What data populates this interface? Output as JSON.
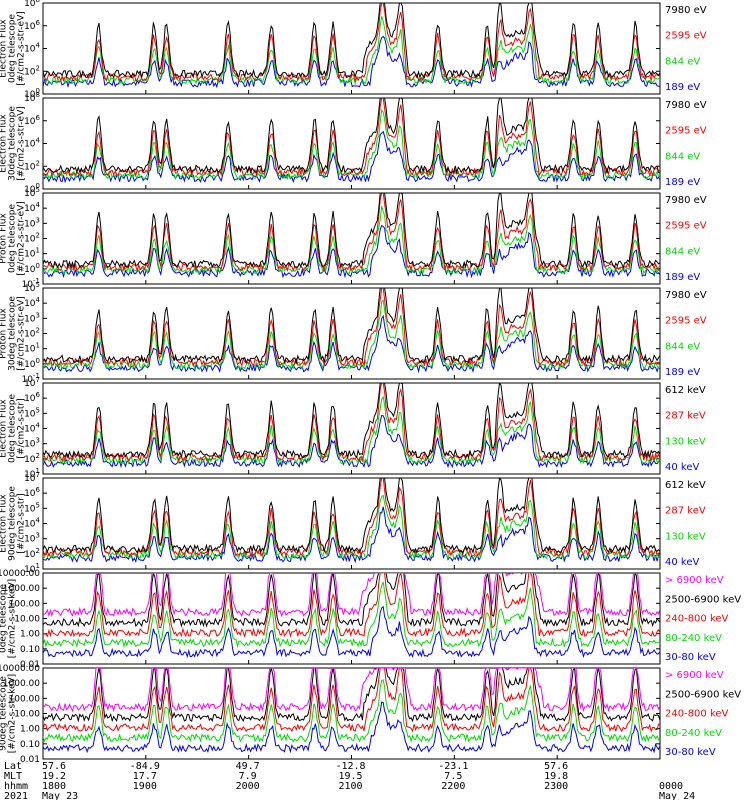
{
  "chart_data": [
    {
      "type": "line",
      "ylabel": [
        "TED",
        "Electron Flux",
        "0deg telescope",
        "[#/cm2-s-str-eV]"
      ],
      "yscale": "log",
      "ylim": [
        1,
        100000000
      ],
      "yticks": [
        "10^0",
        "10^2",
        "10^4",
        "10^6",
        "10^8"
      ],
      "series": [
        {
          "name": "7980 eV",
          "color": "#000000"
        },
        {
          "name": "2595 eV",
          "color": "#ff0000"
        },
        {
          "name": "844 eV",
          "color": "#00dd00"
        },
        {
          "name": "189 eV",
          "color": "#0000ff"
        }
      ]
    },
    {
      "type": "line",
      "ylabel": [
        "TED",
        "Electron Flux",
        "30deg telescope",
        "[#/cm2-s-str-eV]"
      ],
      "yscale": "log",
      "ylim": [
        1,
        100000000
      ],
      "yticks": [
        "10^0",
        "10^2",
        "10^4",
        "10^6",
        "10^8"
      ],
      "series": [
        {
          "name": "7980 eV",
          "color": "#000000"
        },
        {
          "name": "2595 eV",
          "color": "#ff0000"
        },
        {
          "name": "844 eV",
          "color": "#00dd00"
        },
        {
          "name": "189 eV",
          "color": "#0000ff"
        }
      ]
    },
    {
      "type": "line",
      "ylabel": [
        "TED",
        "Proton Flux",
        "0deg telescope",
        "[#/cm2-s-str-eV]"
      ],
      "yscale": "log",
      "ylim": [
        0.1,
        100000
      ],
      "yticks": [
        "10^-1",
        "10^0",
        "10^1",
        "10^2",
        "10^3",
        "10^4",
        "10^5"
      ],
      "series": [
        {
          "name": "7980 eV",
          "color": "#000000"
        },
        {
          "name": "2595 eV",
          "color": "#ff0000"
        },
        {
          "name": "844 eV",
          "color": "#00dd00"
        },
        {
          "name": "189 eV",
          "color": "#0000ff"
        }
      ]
    },
    {
      "type": "line",
      "ylabel": [
        "TED",
        "Proton Flux",
        "30deg telescope",
        "[#/cm2-s-str-eV]"
      ],
      "yscale": "log",
      "ylim": [
        0.1,
        100000
      ],
      "yticks": [
        "10^-1",
        "10^0",
        "10^1",
        "10^2",
        "10^3",
        "10^4",
        "10^5"
      ],
      "series": [
        {
          "name": "7980 eV",
          "color": "#000000"
        },
        {
          "name": "2595 eV",
          "color": "#ff0000"
        },
        {
          "name": "844 eV",
          "color": "#00dd00"
        },
        {
          "name": "189 eV",
          "color": "#0000ff"
        }
      ]
    },
    {
      "type": "line",
      "ylabel": [
        "MEPED",
        "Electron Flux",
        "0deg telescope",
        "[#/cm2-s-str]"
      ],
      "yscale": "log",
      "ylim": [
        10,
        10000000
      ],
      "yticks": [
        "10^1",
        "10^2",
        "10^3",
        "10^4",
        "10^5",
        "10^6",
        "10^7"
      ],
      "series": [
        {
          "name": "612 keV",
          "color": "#000000"
        },
        {
          "name": "287 keV",
          "color": "#ff0000"
        },
        {
          "name": "130 keV",
          "color": "#00dd00"
        },
        {
          "name": "40 keV",
          "color": "#0000ff"
        }
      ]
    },
    {
      "type": "line",
      "ylabel": [
        "MEPED",
        "Electron Flux",
        "90deg telescope",
        "[#/cm2-s-str]"
      ],
      "yscale": "log",
      "ylim": [
        10,
        10000000
      ],
      "yticks": [
        "10^1",
        "10^2",
        "10^3",
        "10^4",
        "10^5",
        "10^6",
        "10^7"
      ],
      "series": [
        {
          "name": "612 keV",
          "color": "#000000"
        },
        {
          "name": "287 keV",
          "color": "#ff0000"
        },
        {
          "name": "130 keV",
          "color": "#00dd00"
        },
        {
          "name": "40 keV",
          "color": "#0000ff"
        }
      ]
    },
    {
      "type": "scatter",
      "ylabel": [
        "0deg telescope",
        "[#/cm2-s-str-keV]"
      ],
      "yscale": "log",
      "ylim": [
        0.01,
        10000
      ],
      "yticks": [
        "0.01",
        "0.10",
        "1.00",
        "10.00",
        "100.00",
        "1000.00",
        "10000.00"
      ],
      "series": [
        {
          "name": "> 6900 keV",
          "color": "#ff00ff"
        },
        {
          "name": "2500-6900 keV",
          "color": "#000000"
        },
        {
          "name": "240-800 keV",
          "color": "#ff0000"
        },
        {
          "name": "80-240 keV",
          "color": "#00dd00"
        },
        {
          "name": "30-80 keV",
          "color": "#0000ff"
        }
      ]
    },
    {
      "type": "scatter",
      "ylabel": [
        "90deg telescope",
        "[#/cm2-s-str-keV]"
      ],
      "yscale": "log",
      "ylim": [
        0.01,
        10000
      ],
      "yticks": [
        "0.01",
        "0.10",
        "1.00",
        "10.00",
        "100.00",
        "1000.00",
        "10000.00"
      ],
      "series": [
        {
          "name": "> 6900 keV",
          "color": "#ff00ff"
        },
        {
          "name": "2500-6900 keV",
          "color": "#000000"
        },
        {
          "name": "240-800 keV",
          "color": "#ff0000"
        },
        {
          "name": "80-240 keV",
          "color": "#00dd00"
        },
        {
          "name": "30-80 keV",
          "color": "#0000ff"
        }
      ]
    }
  ],
  "xaxis": {
    "row_labels": [
      "Lat",
      "MLT",
      "hhmm",
      "2021"
    ],
    "ticks": [
      {
        "lat": "57.6",
        "mlt": "19.2",
        "hhmm": "1800",
        "date": "May 23"
      },
      {
        "lat": "-84.9",
        "mlt": "17.7",
        "hhmm": "1900",
        "date": ""
      },
      {
        "lat": "49.7",
        "mlt": "7.9",
        "hhmm": "2000",
        "date": ""
      },
      {
        "lat": "-12.8",
        "mlt": "19.5",
        "hhmm": "2100",
        "date": ""
      },
      {
        "lat": "-23.1",
        "mlt": "7.5",
        "hhmm": "2200",
        "date": ""
      },
      {
        "lat": "57.6",
        "mlt": "19.8",
        "hhmm": "2300",
        "date": ""
      },
      {
        "lat": "",
        "mlt": "",
        "hhmm": "0000",
        "date": "May 24"
      }
    ]
  }
}
